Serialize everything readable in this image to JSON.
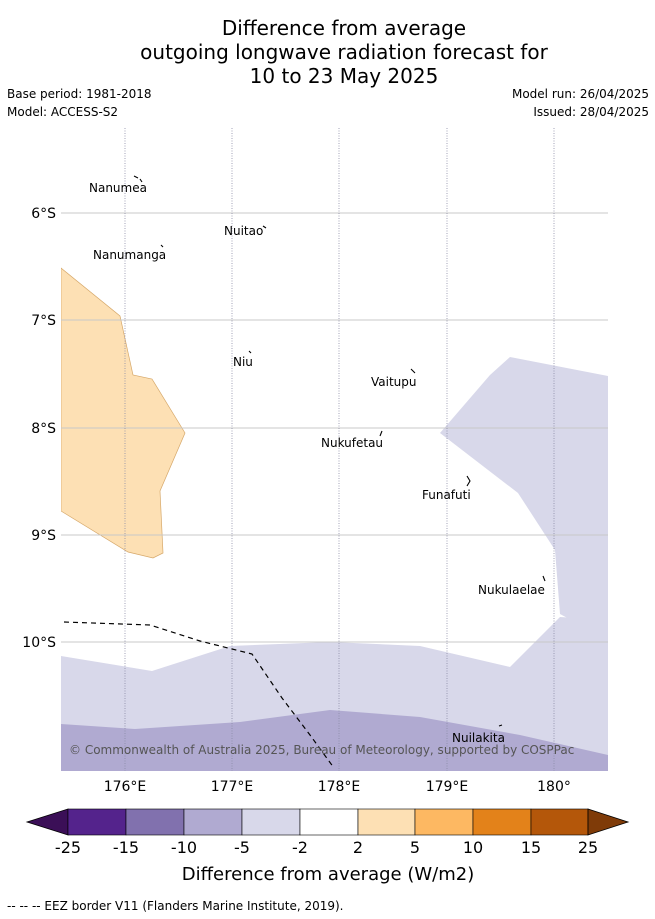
{
  "title": {
    "line1": "Difference from average",
    "line2": "outgoing longwave radiation forecast for",
    "line3": "10 to 23 May 2025"
  },
  "meta": {
    "base_period": "Base period: 1981-2018",
    "model": "Model: ACCESS-S2",
    "model_run": "Model run: 26/04/2025",
    "issued": "Issued: 28/04/2025"
  },
  "axes": {
    "lon_labels": [
      "176°E",
      "177°E",
      "178°E",
      "179°E",
      "180°"
    ],
    "lat_labels": [
      "6°S",
      "7°S",
      "8°S",
      "9°S",
      "10°S"
    ]
  },
  "places": [
    {
      "name": "Nanumea"
    },
    {
      "name": "Nuitao"
    },
    {
      "name": "Nanumanga"
    },
    {
      "name": "Niu"
    },
    {
      "name": "Vaitupu"
    },
    {
      "name": "Nukufetau"
    },
    {
      "name": "Funafuti"
    },
    {
      "name": "Nukulaelae"
    },
    {
      "name": "Nuilakita"
    }
  ],
  "copyright": "© Commonwealth of Australia 2025, Bureau of Meteorology, supported by COSPPac",
  "colorbar": {
    "title": "Difference from average (W/m2)",
    "labels": [
      "-25",
      "-15",
      "-10",
      "-5",
      "-2",
      "2",
      "5",
      "10",
      "15",
      "25"
    ],
    "colors": {
      "below_min": "#3b0f57",
      "bins": [
        "#54238c",
        "#8171ae",
        "#b0aad1",
        "#d8d8ea",
        "#ffffff",
        "#fde0b4",
        "#fdb862",
        "#e3821a",
        "#b4570a"
      ],
      "above_max": "#7f3b08"
    }
  },
  "footnote": "-- -- -- EEZ border V11 (Flanders Marine Institute, 2019)."
}
